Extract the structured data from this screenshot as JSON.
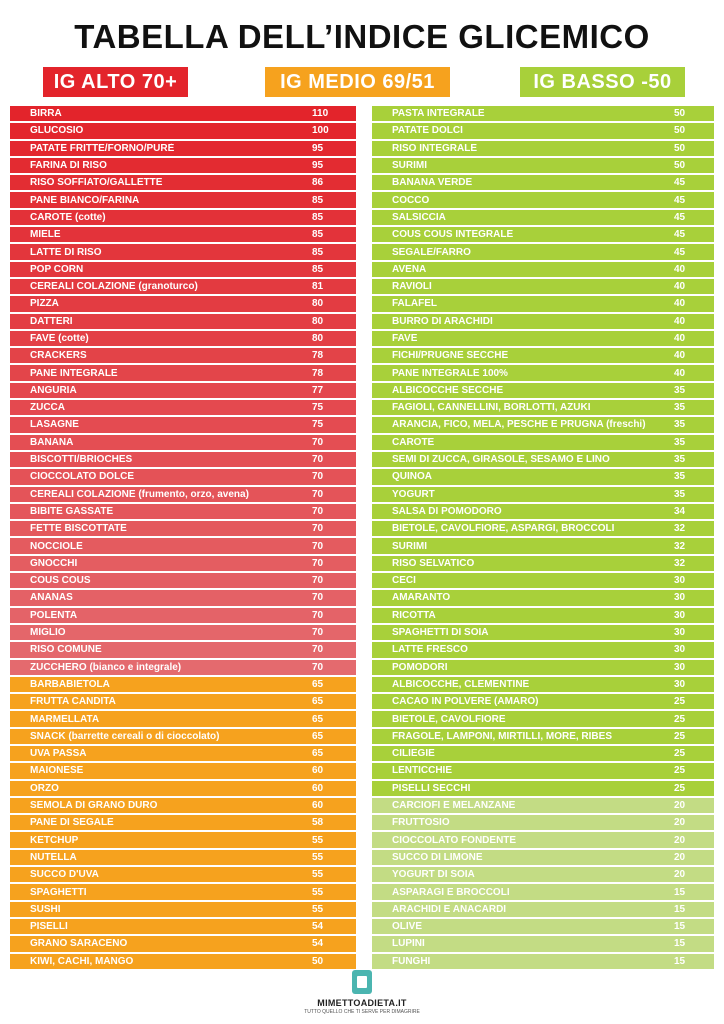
{
  "title": "TABELLA DELL’INDICE GLICEMICO",
  "categories": {
    "high": "IG ALTO 70+",
    "medium": "IG MEDIO 69/51",
    "low": "IG BASSO -50"
  },
  "colors": {
    "high_dark": "#e3242b",
    "high_light": "#e46a6e",
    "medium": "#f6a21e",
    "low": "#a8d03a",
    "low_light": "#c3dc84"
  },
  "left_items": [
    {
      "name": "BIRRA",
      "value": "110",
      "level": "high"
    },
    {
      "name": "GLUCOSIO",
      "value": "100",
      "level": "high"
    },
    {
      "name": "PATATE FRITTE/FORNO/PURÈ",
      "value": "95",
      "level": "high"
    },
    {
      "name": "FARINA DI RISO",
      "value": "95",
      "level": "high"
    },
    {
      "name": "RISO SOFFIATO/GALLETTE",
      "value": "86",
      "level": "high"
    },
    {
      "name": "PANE BIANCO/FARINA",
      "value": "85",
      "level": "high"
    },
    {
      "name": "CAROTE (cotte)",
      "value": "85",
      "level": "high"
    },
    {
      "name": "MIELE",
      "value": "85",
      "level": "high"
    },
    {
      "name": "LATTE DI RISO",
      "value": "85",
      "level": "high"
    },
    {
      "name": "POP CORN",
      "value": "85",
      "level": "high"
    },
    {
      "name": "CEREALI COLAZIONE (granoturco)",
      "value": "81",
      "level": "high"
    },
    {
      "name": "PIZZA",
      "value": "80",
      "level": "high"
    },
    {
      "name": "DATTERI",
      "value": "80",
      "level": "high"
    },
    {
      "name": "FAVE (cotte)",
      "value": "80",
      "level": "high"
    },
    {
      "name": "CRACKERS",
      "value": "78",
      "level": "high"
    },
    {
      "name": "PANE INTEGRALE",
      "value": "78",
      "level": "high"
    },
    {
      "name": "ANGURIA",
      "value": "77",
      "level": "high"
    },
    {
      "name": "ZUCCA",
      "value": "75",
      "level": "high"
    },
    {
      "name": "LASAGNE",
      "value": "75",
      "level": "high"
    },
    {
      "name": "BANANA",
      "value": "70",
      "level": "high"
    },
    {
      "name": "BISCOTTI/BRIOCHES",
      "value": "70",
      "level": "high"
    },
    {
      "name": "CIOCCOLATO DOLCE",
      "value": "70",
      "level": "high"
    },
    {
      "name": "CEREALI COLAZIONE (frumento, orzo, avena)",
      "value": "70",
      "level": "high"
    },
    {
      "name": "BIBITE GASSATE",
      "value": "70",
      "level": "high"
    },
    {
      "name": "FETTE BISCOTTATE",
      "value": "70",
      "level": "high"
    },
    {
      "name": "NOCCIOLE",
      "value": "70",
      "level": "high"
    },
    {
      "name": "GNOCCHI",
      "value": "70",
      "level": "high"
    },
    {
      "name": "COUS COUS",
      "value": "70",
      "level": "high"
    },
    {
      "name": "ANANAS",
      "value": "70",
      "level": "high"
    },
    {
      "name": "POLENTA",
      "value": "70",
      "level": "high"
    },
    {
      "name": "MIGLIO",
      "value": "70",
      "level": "high"
    },
    {
      "name": "RISO COMUNE",
      "value": "70",
      "level": "high"
    },
    {
      "name": "ZUCCHERO (bianco e integrale)",
      "value": "70",
      "level": "high"
    },
    {
      "name": "BARBABIETOLA",
      "value": "65",
      "level": "medium"
    },
    {
      "name": "FRUTTA CANDITA",
      "value": "65",
      "level": "medium"
    },
    {
      "name": "MARMELLATA",
      "value": "65",
      "level": "medium"
    },
    {
      "name": "SNACK (barrette cereali o di cioccolato)",
      "value": "65",
      "level": "medium"
    },
    {
      "name": "UVA PASSA",
      "value": "65",
      "level": "medium"
    },
    {
      "name": "MAIONESE",
      "value": "60",
      "level": "medium"
    },
    {
      "name": "ORZO",
      "value": "60",
      "level": "medium"
    },
    {
      "name": "SEMOLA DI GRANO DURO",
      "value": "60",
      "level": "medium"
    },
    {
      "name": "PANE DI SEGALE",
      "value": "58",
      "level": "medium"
    },
    {
      "name": "KETCHUP",
      "value": "55",
      "level": "medium"
    },
    {
      "name": "NUTELLA",
      "value": "55",
      "level": "medium"
    },
    {
      "name": "SUCCO D'UVA",
      "value": "55",
      "level": "medium"
    },
    {
      "name": "SPAGHETTI",
      "value": "55",
      "level": "medium"
    },
    {
      "name": "SUSHI",
      "value": "55",
      "level": "medium"
    },
    {
      "name": "PISELLI",
      "value": "54",
      "level": "medium"
    },
    {
      "name": "GRANO SARACENO",
      "value": "54",
      "level": "medium"
    },
    {
      "name": "KIWI, CACHI, MANGO",
      "value": "50",
      "level": "medium"
    }
  ],
  "right_items": [
    {
      "name": "PASTA INTEGRALE",
      "value": "50",
      "level": "low"
    },
    {
      "name": "PATATE DOLCI",
      "value": "50",
      "level": "low"
    },
    {
      "name": "RISO INTEGRALE",
      "value": "50",
      "level": "low"
    },
    {
      "name": "SURIMI",
      "value": "50",
      "level": "low"
    },
    {
      "name": "BANANA VERDE",
      "value": "45",
      "level": "low"
    },
    {
      "name": "COCCO",
      "value": "45",
      "level": "low"
    },
    {
      "name": "SALSICCIA",
      "value": "45",
      "level": "low"
    },
    {
      "name": "COUS COUS INTEGRALE",
      "value": "45",
      "level": "low"
    },
    {
      "name": "SEGALE/FARRO",
      "value": "45",
      "level": "low"
    },
    {
      "name": "AVENA",
      "value": "40",
      "level": "low"
    },
    {
      "name": "RAVIOLI",
      "value": "40",
      "level": "low"
    },
    {
      "name": "FALAFEL",
      "value": "40",
      "level": "low"
    },
    {
      "name": "BURRO DI ARACHIDI",
      "value": "40",
      "level": "low"
    },
    {
      "name": "FAVE",
      "value": "40",
      "level": "low"
    },
    {
      "name": "FICHI/PRUGNE SECCHE",
      "value": "40",
      "level": "low"
    },
    {
      "name": "PANE INTEGRALE 100%",
      "value": "40",
      "level": "low"
    },
    {
      "name": "ALBICOCCHE SECCHE",
      "value": "35",
      "level": "low"
    },
    {
      "name": "FAGIOLI, CANNELLINI, BORLOTTI, AZUKI",
      "value": "35",
      "level": "low"
    },
    {
      "name": "ARANCIA, FICO, MELA, PESCHE E PRUGNA (freschi)",
      "value": "35",
      "level": "low"
    },
    {
      "name": "CAROTE",
      "value": "35",
      "level": "low"
    },
    {
      "name": "SEMI DI ZUCCA, GIRASOLE, SESAMO E LINO",
      "value": "35",
      "level": "low"
    },
    {
      "name": "QUINOA",
      "value": "35",
      "level": "low"
    },
    {
      "name": "YOGURT",
      "value": "35",
      "level": "low"
    },
    {
      "name": "SALSA DI POMODORO",
      "value": "34",
      "level": "low"
    },
    {
      "name": "BIETOLE, CAVOLFIORE, ASPARGI, BROCCOLI",
      "value": "32",
      "level": "low"
    },
    {
      "name": "SURIMI",
      "value": "32",
      "level": "low"
    },
    {
      "name": "RISO SELVATICO",
      "value": "32",
      "level": "low"
    },
    {
      "name": "CECI",
      "value": "30",
      "level": "low"
    },
    {
      "name": "AMARANTO",
      "value": "30",
      "level": "low"
    },
    {
      "name": "RICOTTA",
      "value": "30",
      "level": "low"
    },
    {
      "name": "SPAGHETTI DI SOIA",
      "value": "30",
      "level": "low"
    },
    {
      "name": "LATTE FRESCO",
      "value": "30",
      "level": "low"
    },
    {
      "name": "POMODORI",
      "value": "30",
      "level": "low"
    },
    {
      "name": "ALBICOCCHE, CLEMENTINE",
      "value": "30",
      "level": "low"
    },
    {
      "name": "CACAO IN POLVERE (AMARO)",
      "value": "25",
      "level": "low"
    },
    {
      "name": "BIETOLE, CAVOLFIORE",
      "value": "25",
      "level": "low"
    },
    {
      "name": "FRAGOLE, LAMPONI, MIRTILLI, MORE, RIBES",
      "value": "25",
      "level": "low"
    },
    {
      "name": "CILIEGIE",
      "value": "25",
      "level": "low"
    },
    {
      "name": "LENTICCHIE",
      "value": "25",
      "level": "low"
    },
    {
      "name": "PISELLI SECCHI",
      "value": "25",
      "level": "low"
    },
    {
      "name": "CARCIOFI E MELANZANE",
      "value": "20",
      "level": "low_light"
    },
    {
      "name": "FRUTTOSIO",
      "value": "20",
      "level": "low_light"
    },
    {
      "name": "CIOCCOLATO FONDENTE",
      "value": "20",
      "level": "low_light"
    },
    {
      "name": "SUCCO DI LIMONE",
      "value": "20",
      "level": "low_light"
    },
    {
      "name": "YOGURT DI SOIA",
      "value": "20",
      "level": "low_light"
    },
    {
      "name": "ASPARAGI E BROCCOLI",
      "value": "15",
      "level": "low_light"
    },
    {
      "name": "ARACHIDI E ANACARDI",
      "value": "15",
      "level": "low_light"
    },
    {
      "name": "OLIVE",
      "value": "15",
      "level": "low_light"
    },
    {
      "name": "LUPINI",
      "value": "15",
      "level": "low_light"
    },
    {
      "name": "FUNGHI",
      "value": "15",
      "level": "low_light"
    }
  ],
  "footer": {
    "brand": "MIMETTOADIETA.IT",
    "tagline": "TUTTO QUELLO CHE TI SERVE PER DIMAGRIRE"
  }
}
